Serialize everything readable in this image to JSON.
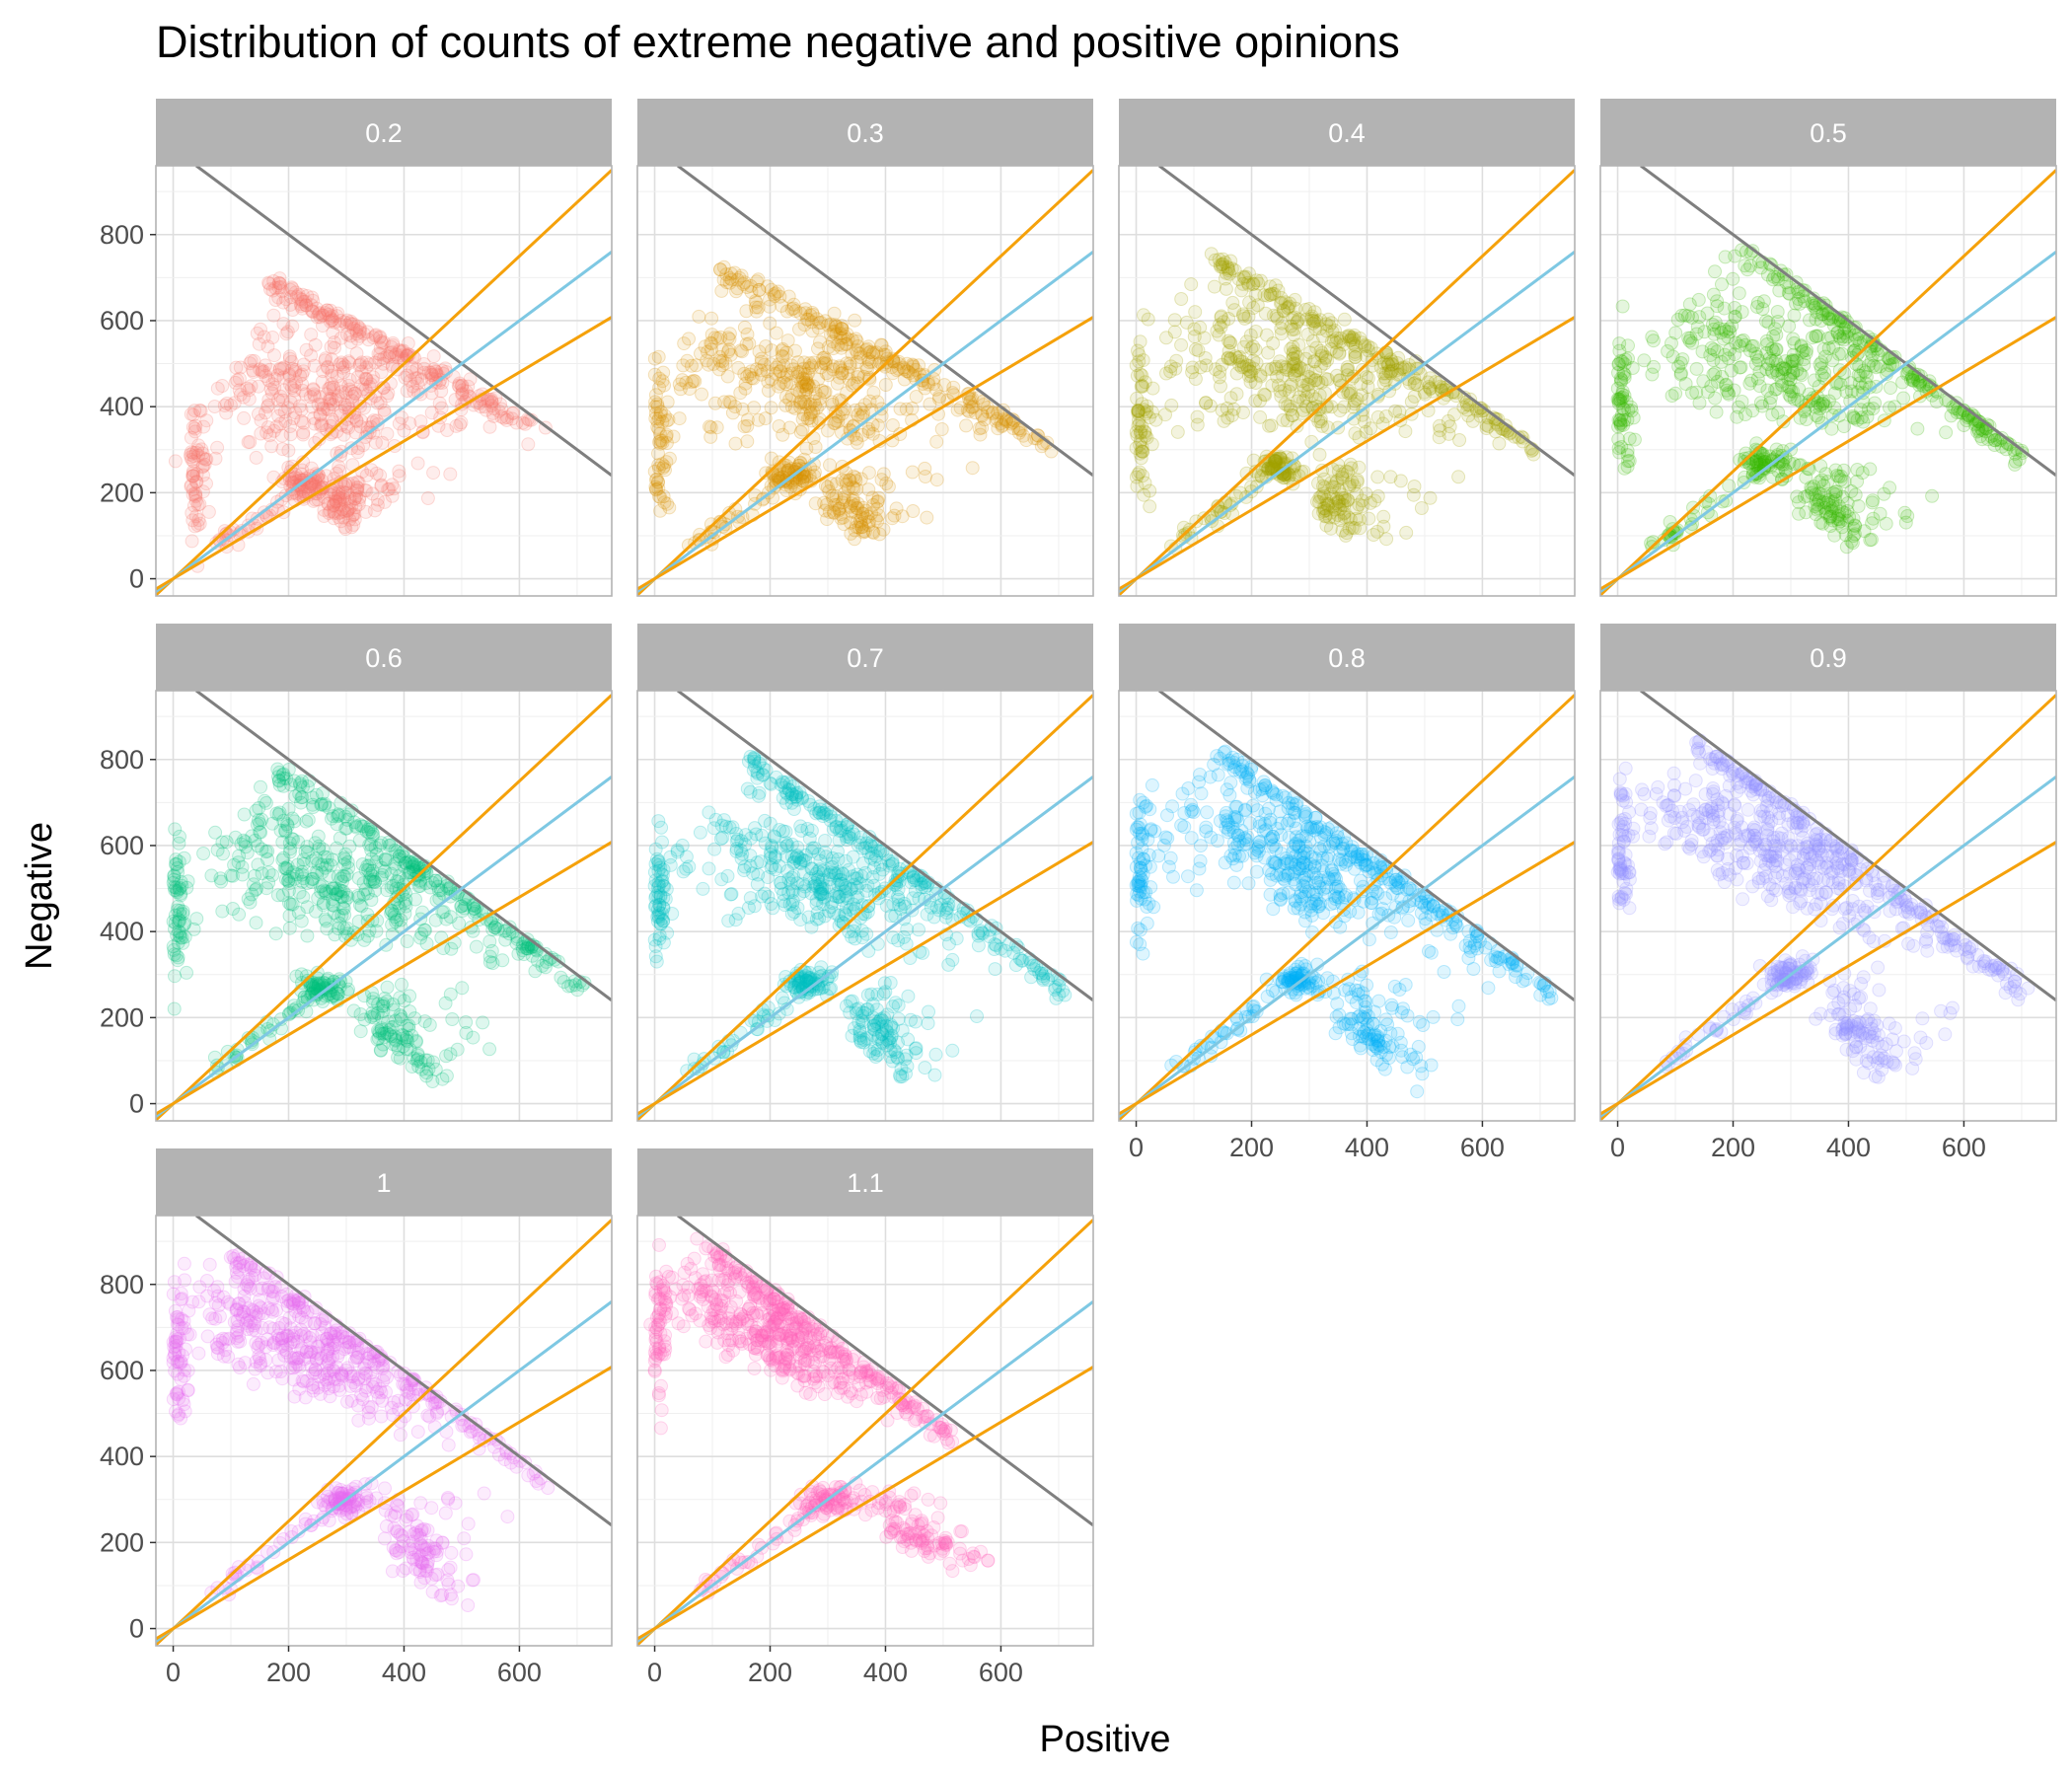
{
  "chart_data": {
    "type": "scatter",
    "title": "Distribution of counts of extreme negative and positive opinions",
    "xlabel": "Positive",
    "ylabel": "Negative",
    "xlim": [
      -30,
      760
    ],
    "ylim": [
      -40,
      960
    ],
    "x_ticks": [
      0,
      200,
      400,
      600
    ],
    "y_ticks": [
      0,
      200,
      400,
      600,
      800
    ],
    "x_tick_labels": [
      "0",
      "200",
      "400",
      "600"
    ],
    "y_tick_labels": [
      "0",
      "200",
      "400",
      "600",
      "800"
    ],
    "grid": true,
    "legend": "none",
    "reference_lines": [
      {
        "kind": "total_limit",
        "color": "#7f7f7f",
        "points": [
          [
            40,
            960
          ],
          [
            760,
            240
          ]
        ]
      },
      {
        "kind": "upper_ratio",
        "color": "#f5a10a",
        "points": [
          [
            -30,
            -38
          ],
          [
            760,
            950
          ]
        ]
      },
      {
        "kind": "equal_ratio",
        "color": "#7ec8e3",
        "points": [
          [
            -30,
            -30
          ],
          [
            760,
            760
          ]
        ]
      },
      {
        "kind": "lower_ratio",
        "color": "#f5a10a",
        "points": [
          [
            -30,
            -24
          ],
          [
            760,
            608
          ]
        ]
      }
    ],
    "panels": [
      {
        "label": "0.2",
        "color": "#F8766D",
        "main_cluster": {
          "x": 230,
          "y": 220
        },
        "upper_left": {
          "x": 170,
          "y": 700
        },
        "left_extreme": {
          "x": 30,
          "y": 250
        },
        "bottom_extreme": {
          "x": 230,
          "y": 70
        },
        "edge_right": {
          "x": 630,
          "y": 360
        }
      },
      {
        "label": "0.3",
        "color": "#D89000",
        "main_cluster": {
          "x": 240,
          "y": 240
        },
        "upper_left": {
          "x": 120,
          "y": 730
        },
        "left_extreme": {
          "x": 0,
          "y": 320
        },
        "bottom_extreme": {
          "x": 300,
          "y": 40
        },
        "edge_right": {
          "x": 700,
          "y": 320
        }
      },
      {
        "label": "0.4",
        "color": "#A3A500",
        "main_cluster": {
          "x": 250,
          "y": 260
        },
        "upper_left": {
          "x": 130,
          "y": 760
        },
        "left_extreme": {
          "x": 0,
          "y": 360
        },
        "bottom_extreme": {
          "x": 340,
          "y": 30
        },
        "edge_right": {
          "x": 700,
          "y": 320
        }
      },
      {
        "label": "0.5",
        "color": "#39B600",
        "main_cluster": {
          "x": 260,
          "y": 270
        },
        "upper_left": {
          "x": 220,
          "y": 780
        },
        "left_extreme": {
          "x": 0,
          "y": 410
        },
        "bottom_extreme": {
          "x": 370,
          "y": 20
        },
        "edge_right": {
          "x": 700,
          "y": 300
        }
      },
      {
        "label": "0.6",
        "color": "#00BF7D",
        "main_cluster": {
          "x": 260,
          "y": 270
        },
        "upper_left": {
          "x": 180,
          "y": 790
        },
        "left_extreme": {
          "x": 0,
          "y": 450
        },
        "bottom_extreme": {
          "x": 390,
          "y": 10
        },
        "edge_right": {
          "x": 710,
          "y": 290
        }
      },
      {
        "label": "0.7",
        "color": "#00BFC4",
        "main_cluster": {
          "x": 270,
          "y": 280
        },
        "upper_left": {
          "x": 170,
          "y": 810
        },
        "left_extreme": {
          "x": 0,
          "y": 480
        },
        "bottom_extreme": {
          "x": 400,
          "y": 10
        },
        "edge_right": {
          "x": 710,
          "y": 280
        }
      },
      {
        "label": "0.8",
        "color": "#00B0F6",
        "main_cluster": {
          "x": 280,
          "y": 290
        },
        "upper_left": {
          "x": 140,
          "y": 830
        },
        "left_extreme": {
          "x": 0,
          "y": 550
        },
        "bottom_extreme": {
          "x": 420,
          "y": 10
        },
        "edge_right": {
          "x": 720,
          "y": 270
        }
      },
      {
        "label": "0.9",
        "color": "#9590FF",
        "main_cluster": {
          "x": 300,
          "y": 300
        },
        "upper_left": {
          "x": 130,
          "y": 860
        },
        "left_extreme": {
          "x": 0,
          "y": 600
        },
        "bottom_extreme": {
          "x": 420,
          "y": 10
        },
        "edge_right": {
          "x": 700,
          "y": 280
        }
      },
      {
        "label": "1",
        "color": "#E76BF3",
        "main_cluster": {
          "x": 300,
          "y": 300
        },
        "upper_left": {
          "x": 100,
          "y": 880
        },
        "left_extreme": {
          "x": 0,
          "y": 650
        },
        "bottom_extreme": {
          "x": 450,
          "y": 10
        },
        "edge_right": {
          "x": 660,
          "y": 360
        }
      },
      {
        "label": "1.1",
        "color": "#FF62BC",
        "main_cluster": {
          "x": 300,
          "y": 300
        },
        "upper_left": {
          "x": 80,
          "y": 910
        },
        "left_extreme": {
          "x": 0,
          "y": 700
        },
        "bottom_extreme": {
          "x": 560,
          "y": 70
        },
        "edge_right": {
          "x": 520,
          "y": 450
        }
      }
    ]
  }
}
